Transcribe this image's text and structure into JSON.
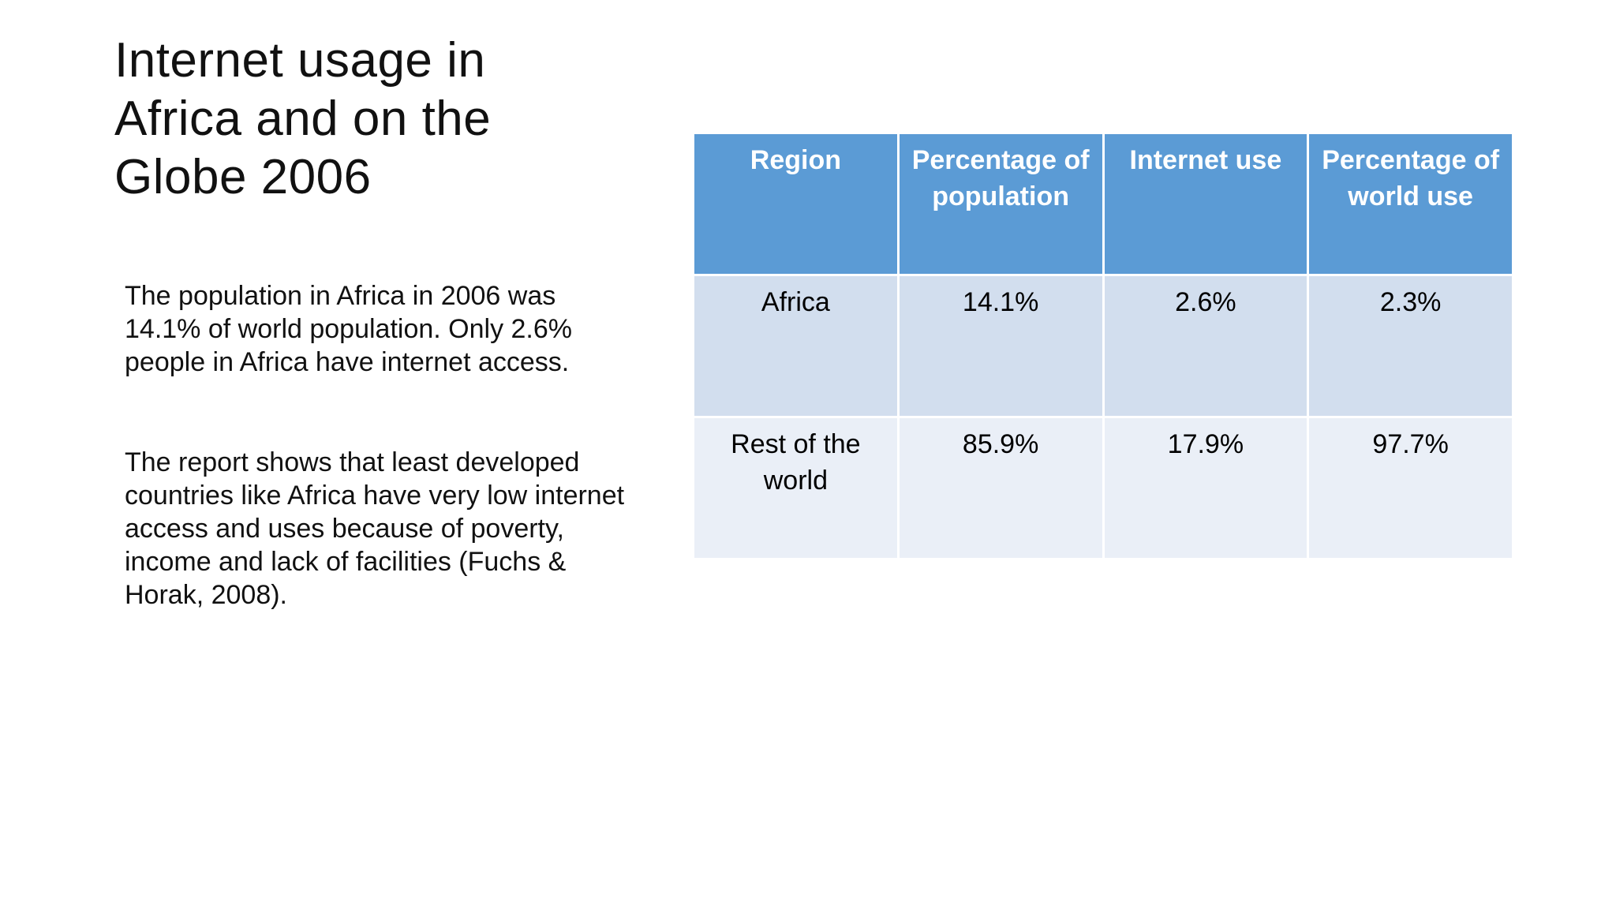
{
  "slide": {
    "title": "Internet usage in Africa and on the Globe 2006",
    "paragraphs": [
      "The population in Africa in 2006 was 14.1% of world population. Only 2.6% people in Africa have internet access.",
      "The report shows that least developed countries like Africa have very low internet access and uses because of poverty, income and lack of facilities (Fuchs & Horak, 2008)."
    ]
  },
  "table": {
    "headers": [
      "Region",
      "Percentage of population",
      "Internet use",
      "Percentage of world use"
    ],
    "rows": [
      [
        "Africa",
        "14.1%",
        "2.6%",
        "2.3%"
      ],
      [
        "Rest of the world",
        "85.9%",
        "17.9%",
        "97.7%"
      ]
    ]
  },
  "colors": {
    "header_bg": "#5b9bd5",
    "row_band_1": "#d2deee",
    "row_band_2": "#eaeff7"
  }
}
